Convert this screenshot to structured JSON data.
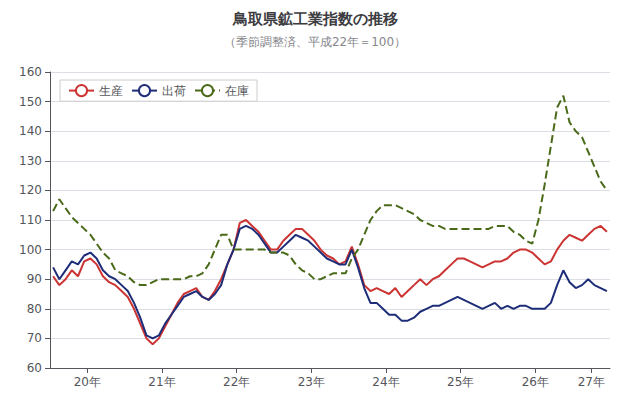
{
  "chart_data": {
    "type": "line",
    "title": "鳥取県鉱工業指数の推移",
    "subtitle": "（季節調整済、平成22年＝100）",
    "x": [
      1,
      2,
      3,
      4,
      5,
      6,
      7,
      8,
      9,
      10,
      11,
      12,
      13,
      14,
      15,
      16,
      17,
      18,
      19,
      20,
      21,
      22,
      23,
      24,
      25,
      26,
      27,
      28,
      29,
      30,
      31,
      32,
      33,
      34,
      35,
      36,
      37,
      38,
      39,
      40,
      41,
      42,
      43,
      44,
      45,
      46,
      47,
      48,
      49,
      50,
      51,
      52,
      53,
      54,
      55,
      56,
      57,
      58,
      59,
      60,
      61,
      62,
      63,
      64,
      65,
      66,
      67,
      68,
      69,
      70,
      71,
      72,
      73,
      74,
      75,
      76,
      77,
      78,
      79,
      80,
      81,
      82,
      83,
      84,
      85,
      86,
      87,
      88,
      89,
      90
    ],
    "xlim": [
      0.5,
      90.5
    ],
    "xticks": [
      {
        "value": 6.5,
        "label": "20年"
      },
      {
        "value": 18.5,
        "label": "21年"
      },
      {
        "value": 30.5,
        "label": "22年"
      },
      {
        "value": 42.5,
        "label": "23年"
      },
      {
        "value": 54.5,
        "label": "24年"
      },
      {
        "value": 66.5,
        "label": "25年"
      },
      {
        "value": 78.5,
        "label": "26年"
      },
      {
        "value": 87.5,
        "label": "27年"
      }
    ],
    "ylim": [
      60,
      160
    ],
    "yticks": [
      60,
      70,
      80,
      90,
      100,
      110,
      120,
      130,
      140,
      150,
      160
    ],
    "grid": true,
    "legend": "upper left",
    "series": [
      {
        "name": "生産",
        "color": "#cc3333",
        "line_style": "solid",
        "values": [
          91,
          88,
          90,
          93,
          91,
          96,
          97,
          95,
          91,
          89,
          88,
          86,
          84,
          80,
          75,
          70,
          68,
          70,
          74,
          78,
          82,
          85,
          86,
          87,
          84,
          83,
          86,
          90,
          95,
          100,
          109,
          110,
          108,
          106,
          103,
          100,
          100,
          103,
          105,
          107,
          107,
          105,
          103,
          100,
          98,
          97,
          95,
          96,
          101,
          95,
          88,
          86,
          87,
          86,
          85,
          87,
          84,
          86,
          88,
          90,
          88,
          90,
          91,
          93,
          95,
          97,
          97,
          96,
          95,
          94,
          95,
          96,
          96,
          97,
          99,
          100,
          100,
          99,
          97,
          95,
          96,
          100,
          103,
          105,
          104,
          103,
          105,
          107,
          108,
          106
        ]
      },
      {
        "name": "出荷",
        "color": "#1e2d78",
        "line_style": "solid",
        "values": [
          94,
          90,
          93,
          96,
          95,
          98,
          99,
          97,
          93,
          91,
          90,
          88,
          86,
          82,
          77,
          71,
          70,
          71,
          75,
          78,
          81,
          84,
          85,
          86,
          84,
          83,
          85,
          88,
          95,
          100,
          107,
          108,
          107,
          105,
          102,
          99,
          99,
          101,
          103,
          105,
          104,
          103,
          101,
          99,
          97,
          96,
          95,
          95,
          100,
          94,
          87,
          82,
          82,
          80,
          78,
          78,
          76,
          76,
          77,
          79,
          80,
          81,
          81,
          82,
          83,
          84,
          83,
          82,
          81,
          80,
          81,
          82,
          80,
          81,
          80,
          81,
          81,
          80,
          80,
          80,
          82,
          88,
          93,
          89,
          87,
          88,
          90,
          88,
          87,
          86
        ]
      },
      {
        "name": "在庫",
        "color": "#4a6a1a",
        "line_style": "dashed",
        "values": [
          113,
          117,
          114,
          111,
          109,
          107,
          105,
          102,
          99,
          97,
          93,
          92,
          91,
          89,
          88,
          88,
          89,
          90,
          90,
          90,
          90,
          90,
          91,
          91,
          92,
          95,
          100,
          105,
          105,
          100,
          100,
          100,
          100,
          100,
          100,
          99,
          99,
          99,
          98,
          95,
          93,
          92,
          90,
          90,
          91,
          92,
          92,
          92,
          97,
          100,
          105,
          110,
          113,
          115,
          115,
          115,
          114,
          113,
          112,
          110,
          109,
          108,
          108,
          107,
          107,
          107,
          107,
          107,
          107,
          107,
          107,
          108,
          108,
          108,
          106,
          105,
          103,
          102,
          110,
          122,
          135,
          148,
          152,
          143,
          140,
          138,
          133,
          128,
          123,
          120
        ]
      }
    ]
  }
}
